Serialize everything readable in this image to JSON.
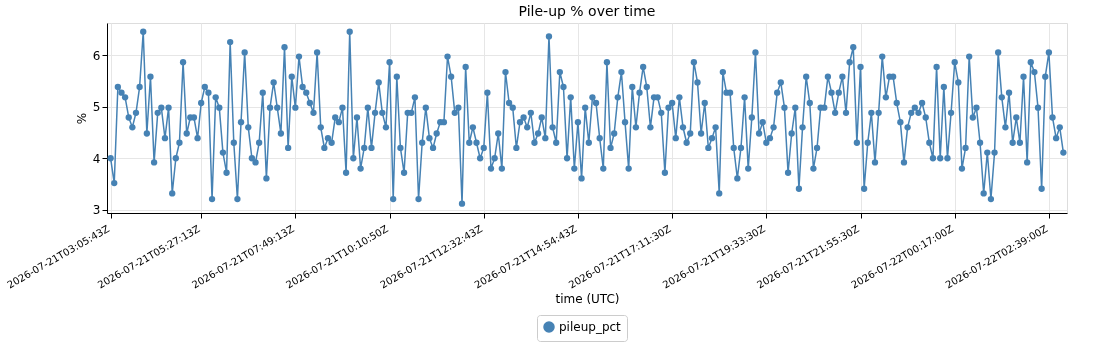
{
  "chart_data": {
    "type": "line",
    "title": "Pile-up % over time",
    "xlabel": "time (UTC)",
    "ylabel": "%",
    "categories": [
      "2026-07-21T03:05:43Z",
      null,
      null,
      null,
      null,
      null,
      null,
      null,
      null,
      null,
      null,
      null,
      null,
      null,
      null,
      null,
      null,
      null,
      null,
      null,
      null,
      null,
      null,
      null,
      null,
      "2026-07-21T05:27:13Z",
      null,
      null,
      null,
      null,
      null,
      null,
      null,
      null,
      null,
      null,
      null,
      null,
      null,
      null,
      null,
      null,
      null,
      null,
      null,
      null,
      null,
      null,
      null,
      null,
      null,
      "2026-07-21T07:49:13Z",
      null,
      null,
      null,
      null,
      null,
      null,
      null,
      null,
      null,
      null,
      null,
      null,
      null,
      null,
      null,
      null,
      null,
      null,
      null,
      null,
      null,
      null,
      null,
      null,
      null,
      "2026-07-21T10:10:50Z",
      null,
      null,
      null,
      null,
      null,
      null,
      null,
      null,
      null,
      null,
      null,
      null,
      null,
      null,
      null,
      null,
      null,
      null,
      null,
      null,
      null,
      null,
      null,
      null,
      null,
      "2026-07-21T12:32:43Z",
      null,
      null,
      null,
      null,
      null,
      null,
      null,
      null,
      null,
      null,
      null,
      null,
      null,
      null,
      null,
      null,
      null,
      null,
      null,
      null,
      null,
      null,
      null,
      null,
      null,
      "2026-07-21T14:54:43Z",
      null,
      null,
      null,
      null,
      null,
      null,
      null,
      null,
      null,
      null,
      null,
      null,
      null,
      null,
      null,
      null,
      null,
      null,
      null,
      null,
      null,
      null,
      null,
      null,
      null,
      "2026-07-21T17:11:30Z",
      null,
      null,
      null,
      null,
      null,
      null,
      null,
      null,
      null,
      null,
      null,
      null,
      null,
      null,
      null,
      null,
      null,
      null,
      null,
      null,
      null,
      null,
      null,
      null,
      null,
      "2026-07-21T19:33:30Z",
      null,
      null,
      null,
      null,
      null,
      null,
      null,
      null,
      null,
      null,
      null,
      null,
      null,
      null,
      null,
      null,
      null,
      null,
      null,
      null,
      null,
      null,
      null,
      null,
      null,
      "2026-07-21T21:55:30Z",
      null,
      null,
      null,
      null,
      null,
      null,
      null,
      null,
      null,
      null,
      null,
      null,
      null,
      null,
      null,
      null,
      null,
      null,
      null,
      null,
      null,
      null,
      null,
      null,
      null,
      "2026-07-22T00:17:00Z",
      null,
      null,
      null,
      null,
      null,
      null,
      null,
      null,
      null,
      null,
      null,
      null,
      null,
      null,
      null,
      null,
      null,
      null,
      null,
      null,
      null,
      null,
      null,
      null,
      null,
      "2026-07-22T02:39:00Z",
      null,
      null,
      null,
      null
    ],
    "series": [
      {
        "name": "pileup_pct",
        "color": "#4682b4",
        "values": [
          4.0,
          3.52,
          5.38,
          5.27,
          5.18,
          4.79,
          4.6,
          4.88,
          5.38,
          6.45,
          4.48,
          5.58,
          3.92,
          4.88,
          4.98,
          4.39,
          4.98,
          3.32,
          4.0,
          4.3,
          5.86,
          4.48,
          4.79,
          4.79,
          4.39,
          5.07,
          5.38,
          5.27,
          3.21,
          5.18,
          4.98,
          4.11,
          3.72,
          6.25,
          4.3,
          3.21,
          4.7,
          6.05,
          4.6,
          4.0,
          3.92,
          4.3,
          5.27,
          3.61,
          4.98,
          5.47,
          4.98,
          4.48,
          6.15,
          4.2,
          5.58,
          4.98,
          5.97,
          5.38,
          5.27,
          5.07,
          4.88,
          6.05,
          4.6,
          4.2,
          4.39,
          4.3,
          4.79,
          4.7,
          4.98,
          3.72,
          6.45,
          4.0,
          4.79,
          3.8,
          4.2,
          4.98,
          4.2,
          4.88,
          5.47,
          4.88,
          4.6,
          5.86,
          3.21,
          5.58,
          4.2,
          3.72,
          4.88,
          4.88,
          5.18,
          3.21,
          4.3,
          4.98,
          4.39,
          4.2,
          4.48,
          4.7,
          4.7,
          5.97,
          5.58,
          4.88,
          4.98,
          3.12,
          5.77,
          4.3,
          4.6,
          4.3,
          4.0,
          4.2,
          5.27,
          3.8,
          4.0,
          4.48,
          3.8,
          5.67,
          5.07,
          4.98,
          4.2,
          4.7,
          4.79,
          4.6,
          4.88,
          4.3,
          4.48,
          4.79,
          4.39,
          6.36,
          4.6,
          4.3,
          5.67,
          5.38,
          4.0,
          5.18,
          3.8,
          4.7,
          3.61,
          4.98,
          4.3,
          5.18,
          5.07,
          4.39,
          3.8,
          5.86,
          4.2,
          4.48,
          5.18,
          5.67,
          4.7,
          3.8,
          5.38,
          4.6,
          5.27,
          5.77,
          5.38,
          4.6,
          5.18,
          5.18,
          4.88,
          3.72,
          4.98,
          5.07,
          4.39,
          5.18,
          4.6,
          4.3,
          4.48,
          5.86,
          5.47,
          4.48,
          5.07,
          4.2,
          4.39,
          4.6,
          3.32,
          5.67,
          5.27,
          5.27,
          4.2,
          3.61,
          4.2,
          5.18,
          3.8,
          4.79,
          6.05,
          4.48,
          4.7,
          4.3,
          4.39,
          4.6,
          5.27,
          5.47,
          4.98,
          3.72,
          4.48,
          4.98,
          3.41,
          4.6,
          5.58,
          5.07,
          3.8,
          4.2,
          4.98,
          4.98,
          5.58,
          5.27,
          4.88,
          5.27,
          5.58,
          4.88,
          5.86,
          6.15,
          4.3,
          5.77,
          3.41,
          4.3,
          4.88,
          3.92,
          4.88,
          5.97,
          5.18,
          5.58,
          5.58,
          5.07,
          4.7,
          3.92,
          4.6,
          4.88,
          4.98,
          4.88,
          5.07,
          4.79,
          4.3,
          4.0,
          5.77,
          4.0,
          5.38,
          4.0,
          4.88,
          5.86,
          5.47,
          3.8,
          4.2,
          5.97,
          4.79,
          4.98,
          4.3,
          3.32,
          4.11,
          3.21,
          4.11,
          6.05,
          5.18,
          4.6,
          5.27,
          4.3,
          4.79,
          4.3,
          5.58,
          3.92,
          5.86,
          5.67,
          4.98,
          3.41,
          5.58,
          6.05,
          4.79,
          4.39,
          4.6,
          4.11
        ]
      }
    ],
    "ylim": [
      2.94,
      6.62
    ],
    "yticks": [
      3,
      4,
      5,
      6
    ],
    "grid": true,
    "legend": "bottom",
    "marker": "circle",
    "line_style": "solid"
  }
}
